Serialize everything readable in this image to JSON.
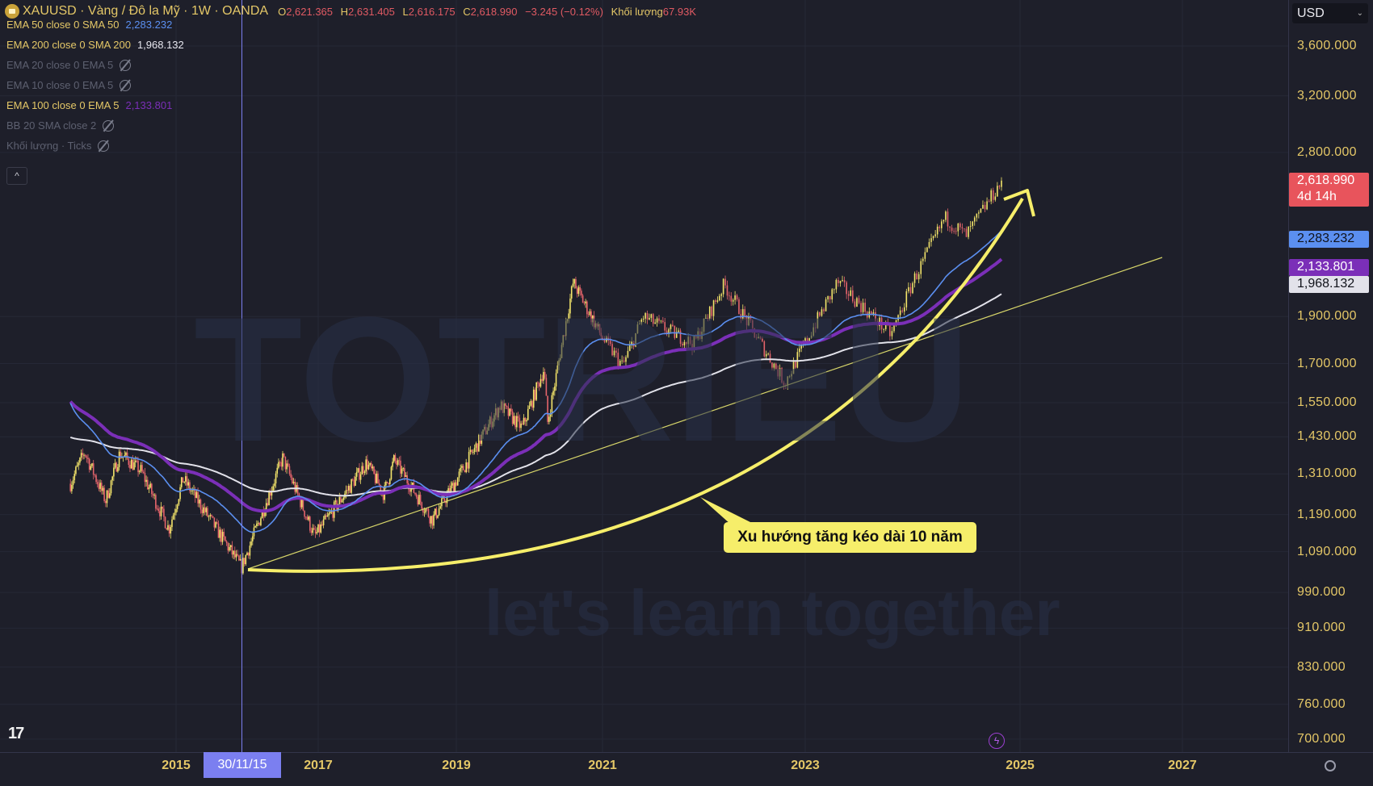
{
  "header": {
    "symbol_title": "XAUUSD · Vàng / Đô la Mỹ · 1W · OANDA",
    "ohlc": [
      {
        "key": "O",
        "value": "2,621.365"
      },
      {
        "key": "H",
        "value": "2,631.405"
      },
      {
        "key": "L",
        "value": "2,616.175"
      },
      {
        "key": "C",
        "value": "2,618.990"
      },
      {
        "key": "",
        "value": "−3.245 (−0.12%)"
      },
      {
        "key": "Khối lượng",
        "value": "67.93K"
      }
    ]
  },
  "legend": [
    {
      "label": "EMA 50 close 0 SMA 50",
      "value": "2,283.232",
      "color": "#5b8ff0",
      "hidden": false
    },
    {
      "label": "EMA 200 close 0 SMA 200",
      "value": "1,968.132",
      "color": "#e6e6ee",
      "hidden": false
    },
    {
      "label": "EMA 20 close 0 EMA 5",
      "value": "",
      "hidden": true
    },
    {
      "label": "EMA 10 close 0 EMA 5",
      "value": "",
      "hidden": true
    },
    {
      "label": "EMA 100 close 0 EMA 5",
      "value": "2,133.801",
      "color": "#7b2fb8",
      "hidden": false
    },
    {
      "label": "BB 20 SMA close 2",
      "value": "",
      "hidden": true
    },
    {
      "label": "Khối lượng · Ticks",
      "value": "",
      "hidden": true
    }
  ],
  "collapse_label": "^",
  "currency": "USD",
  "price_axis": {
    "scale": "log",
    "ticks": [
      "3,600.000",
      "3,200.000",
      "2,800.000",
      "1,900.000",
      "1,700.000",
      "1,550.000",
      "1,430.000",
      "1,310.000",
      "1,190.000",
      "1,090.000",
      "990.000",
      "910.000",
      "830.000",
      "760.000",
      "700.000"
    ],
    "tick_values": [
      3600,
      3200,
      2800,
      1900,
      1700,
      1550,
      1430,
      1310,
      1190,
      1090,
      990,
      910,
      830,
      760,
      700
    ]
  },
  "price_tags": [
    {
      "name": "last-price",
      "value": "2,618.990",
      "sub": "4d 14h",
      "bg": "#e8545c",
      "fg": "#ffffff",
      "price": 2618.99
    },
    {
      "name": "ema50",
      "value": "2,283.232",
      "bg": "#5b8ff0",
      "fg": "#10121a",
      "price": 2283.232
    },
    {
      "name": "ema100",
      "value": "2,133.801",
      "bg": "#7b2fb8",
      "fg": "#ffffff",
      "price": 2133.801
    },
    {
      "name": "ema200",
      "value": "1,968.132",
      "bg": "#e2e2ea",
      "fg": "#10121a",
      "price": 1968.132
    }
  ],
  "time_axis": {
    "ticks": [
      "2015",
      "2017",
      "2019",
      "2021",
      "2023",
      "2025",
      "2027"
    ],
    "crosshair_label": "30/11/15"
  },
  "annotation": "Xu hướng tăng kéo dài 10 năm",
  "watermark": {
    "main": "TOTRIEU",
    "sub": "let's learn together"
  },
  "brand_logo": "TV",
  "colors": {
    "background": "#1e1f2a",
    "up": "#f3e46a",
    "down": "#e4646b",
    "ema50": "#5b8ff0",
    "ema100": "#7b2fb8",
    "ema200": "#e2e2ea",
    "trend": "#f6ee6a",
    "crosshair": "#7b7ff0"
  },
  "chart_data": {
    "type": "candlestick",
    "interval": "1W",
    "y_scale": "log",
    "ylim": [
      700,
      3600
    ],
    "x_range": [
      "2013",
      "2027"
    ],
    "approx_close_path": [
      [
        "2013.5",
        1280
      ],
      [
        "2013.7",
        1380
      ],
      [
        "2014.0",
        1230
      ],
      [
        "2014.2",
        1375
      ],
      [
        "2014.5",
        1320
      ],
      [
        "2014.9",
        1150
      ],
      [
        "2015.1",
        1295
      ],
      [
        "2015.5",
        1170
      ],
      [
        "2015.92",
        1050
      ],
      [
        "2016.5",
        1360
      ],
      [
        "2016.95",
        1130
      ],
      [
        "2017.7",
        1345
      ],
      [
        "2017.95",
        1250
      ],
      [
        "2018.1",
        1355
      ],
      [
        "2018.65",
        1175
      ],
      [
        "2019.0",
        1290
      ],
      [
        "2019.6",
        1540
      ],
      [
        "2019.9",
        1460
      ],
      [
        "2020.2",
        1680
      ],
      [
        "2020.25",
        1480
      ],
      [
        "2020.6",
        2060
      ],
      [
        "2021.2",
        1690
      ],
      [
        "2021.4",
        1900
      ],
      [
        "2021.9",
        1780
      ],
      [
        "2022.2",
        2050
      ],
      [
        "2022.8",
        1625
      ],
      [
        "2023.3",
        2060
      ],
      [
        "2023.8",
        1820
      ],
      [
        "2024.0",
        2060
      ],
      [
        "2024.3",
        2400
      ],
      [
        "2024.5",
        2300
      ],
      [
        "2024.83",
        2619
      ]
    ],
    "indicators": {
      "EMA 50": 2283.232,
      "EMA 100": 2133.801,
      "EMA 200": 1968.132
    }
  }
}
